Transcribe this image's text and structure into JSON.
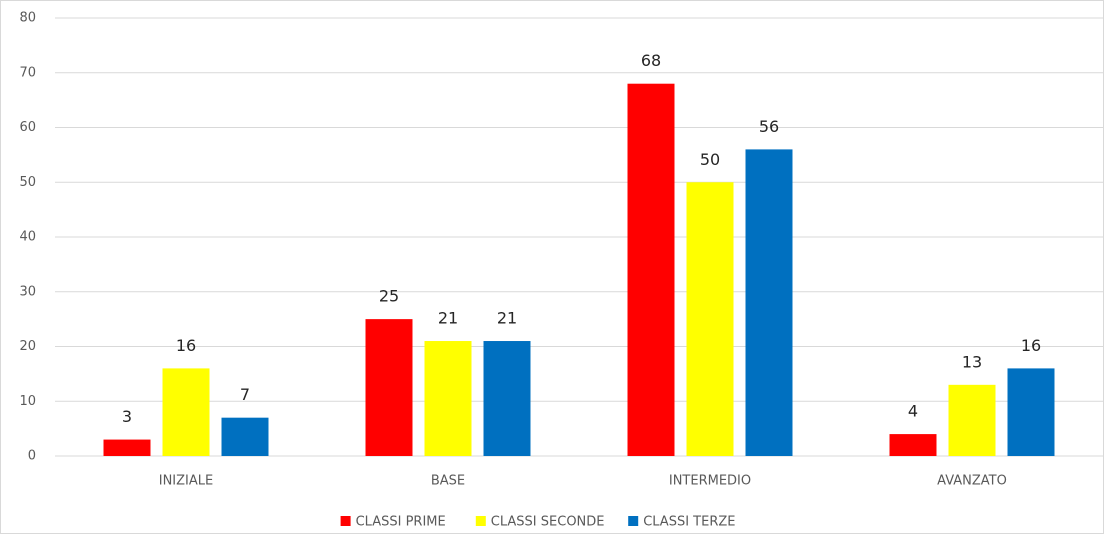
{
  "chart_data": {
    "type": "bar",
    "categories": [
      "INIZIALE",
      "BASE",
      "INTERMEDIO",
      "AVANZATO"
    ],
    "series": [
      {
        "name": "CLASSI PRIME",
        "color": "#ff0000",
        "values": [
          3,
          25,
          68,
          4
        ]
      },
      {
        "name": "CLASSI SECONDE",
        "color": "#ffff00",
        "values": [
          16,
          21,
          50,
          13
        ]
      },
      {
        "name": "CLASSI TERZE",
        "color": "#0070c0",
        "values": [
          7,
          21,
          56,
          16
        ]
      }
    ],
    "ylim": [
      0,
      80
    ],
    "yticks": [
      0,
      10,
      20,
      30,
      40,
      50,
      60,
      70,
      80
    ],
    "grid": true,
    "legend": "bottom"
  }
}
